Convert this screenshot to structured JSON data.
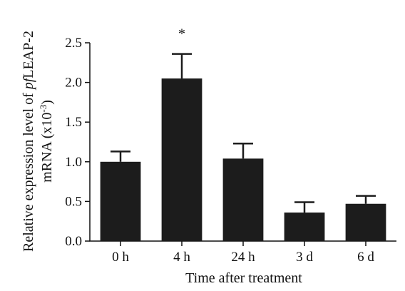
{
  "chart_data": {
    "type": "bar",
    "categories": [
      "0 h",
      "4 h",
      "24 h",
      "3 d",
      "6 d"
    ],
    "values": [
      1.0,
      2.05,
      1.04,
      0.36,
      0.47
    ],
    "error_upper": [
      0.13,
      0.31,
      0.19,
      0.13,
      0.1
    ],
    "ylim": [
      0.0,
      2.5
    ],
    "yticks": [
      "0.0",
      "0.5",
      "1.0",
      "1.5",
      "2.0",
      "2.5"
    ],
    "xlabel": "Time after treatment",
    "ylabel_line1_prefix": "Relative expression level of ",
    "ylabel_line1_italic": "pf",
    "ylabel_line1_suffix": "LEAP-2",
    "ylabel_line2_prefix": "mRNA (x10",
    "ylabel_line2_sup": "-3",
    "ylabel_line2_suffix": ")",
    "annotations": [
      {
        "category": "4 h",
        "text": "*"
      }
    ],
    "bar_color": "#1c1c1c",
    "grid": false,
    "legend": "none"
  }
}
